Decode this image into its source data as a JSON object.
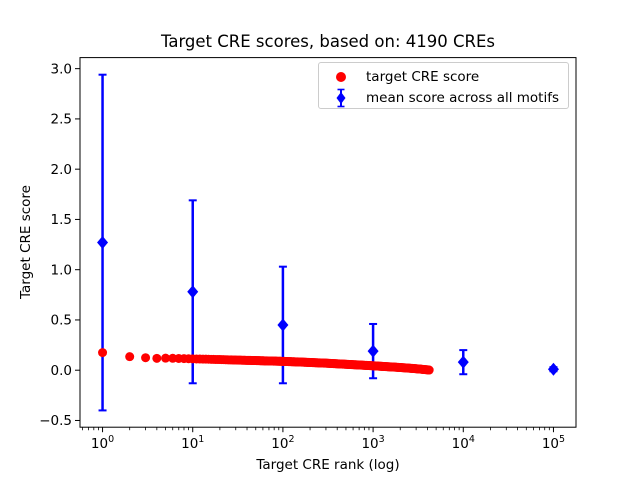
{
  "chart_data": {
    "type": "scatter",
    "title": "Target CRE scores, based on: 4190 CREs",
    "xlabel": "Target CRE rank (log)",
    "ylabel": "Target CRE score",
    "x_scale": "log",
    "grid": false,
    "legend_position": "upper right",
    "xlim_log10": [
      -0.25,
      5.25
    ],
    "ylim": [
      -0.567,
      3.11
    ],
    "background_color": "#ffffff",
    "spine_color": "#000000",
    "x_major_ticks": [
      {
        "value": 1,
        "base": "10",
        "exp": "0"
      },
      {
        "value": 10,
        "base": "10",
        "exp": "1"
      },
      {
        "value": 100,
        "base": "10",
        "exp": "2"
      },
      {
        "value": 1000,
        "base": "10",
        "exp": "3"
      },
      {
        "value": 10000,
        "base": "10",
        "exp": "4"
      },
      {
        "value": 100000,
        "base": "10",
        "exp": "5"
      }
    ],
    "y_ticks": [
      {
        "value": -0.5,
        "label": "−0.5"
      },
      {
        "value": 0.0,
        "label": "0.0"
      },
      {
        "value": 0.5,
        "label": "0.5"
      },
      {
        "value": 1.0,
        "label": "1.0"
      },
      {
        "value": 1.5,
        "label": "1.5"
      },
      {
        "value": 2.0,
        "label": "2.0"
      },
      {
        "value": 2.5,
        "label": "2.5"
      },
      {
        "value": 3.0,
        "label": "3.0"
      }
    ],
    "legend": {
      "entries": [
        {
          "label": "target CRE score",
          "color": "#ff0000",
          "marker": "circle"
        },
        {
          "label": "mean score across all motifs",
          "color": "#0000ff",
          "marker": "diamond-errorbar"
        }
      ]
    },
    "series": [
      {
        "name": "mean score across all motifs",
        "type": "errorbar",
        "color": "#0000ff",
        "marker": "diamond",
        "points": [
          {
            "x": 1,
            "mean": 1.27,
            "std": 1.67
          },
          {
            "x": 10,
            "mean": 0.78,
            "std": 0.91
          },
          {
            "x": 100,
            "mean": 0.45,
            "std": 0.58
          },
          {
            "x": 1000,
            "mean": 0.19,
            "std": 0.27
          },
          {
            "x": 10000,
            "mean": 0.08,
            "std": 0.12
          },
          {
            "x": 100000,
            "mean": 0.01,
            "std": 0.02
          }
        ]
      },
      {
        "name": "target CRE score",
        "type": "dense-scatter",
        "color": "#ff0000",
        "marker": "circle",
        "n_points": 4190,
        "rank_range": [
          1,
          4190
        ],
        "anchors_rank_score": [
          [
            1,
            0.175
          ],
          [
            2,
            0.135
          ],
          [
            3,
            0.124
          ],
          [
            4,
            0.118
          ],
          [
            5,
            0.12
          ],
          [
            7,
            0.117
          ],
          [
            10,
            0.113
          ],
          [
            15,
            0.109
          ],
          [
            20,
            0.106
          ],
          [
            30,
            0.101
          ],
          [
            50,
            0.096
          ],
          [
            70,
            0.092
          ],
          [
            100,
            0.088
          ],
          [
            150,
            0.082
          ],
          [
            200,
            0.077
          ],
          [
            300,
            0.07
          ],
          [
            500,
            0.059
          ],
          [
            700,
            0.052
          ],
          [
            1000,
            0.044
          ],
          [
            1500,
            0.034
          ],
          [
            2000,
            0.027
          ],
          [
            3000,
            0.015
          ],
          [
            4190,
            0.002
          ]
        ]
      }
    ]
  }
}
